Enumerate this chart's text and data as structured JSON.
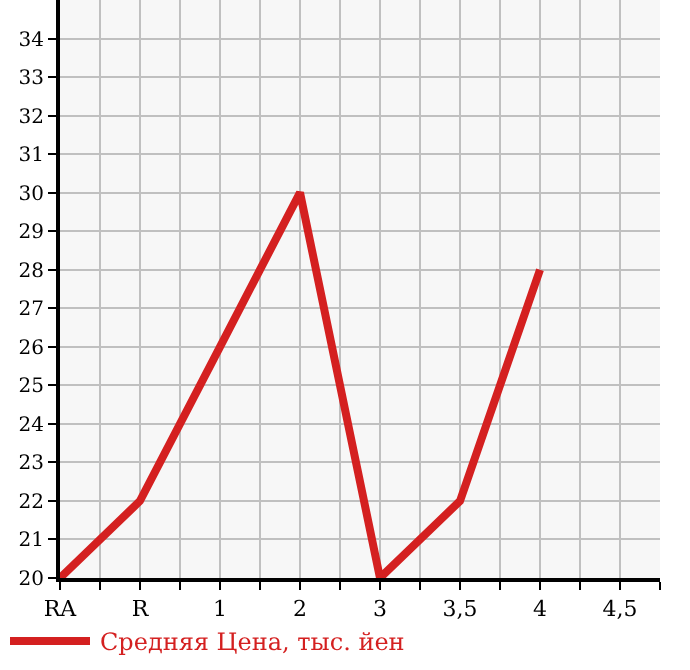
{
  "chart_data": {
    "type": "line",
    "categories": [
      "RA",
      "R",
      "1",
      "2",
      "3",
      "3,5",
      "4",
      "4,5"
    ],
    "series": [
      {
        "name": "Средняя Цена, тыс. йен",
        "color": "#d42020",
        "values": [
          20,
          22,
          26,
          30,
          20,
          22,
          28,
          null
        ]
      }
    ],
    "ylim": [
      20,
      35
    ],
    "yticks": [
      20,
      21,
      22,
      23,
      24,
      25,
      26,
      27,
      28,
      29,
      30,
      31,
      32,
      33,
      34
    ],
    "grid": true,
    "legend": "bottom",
    "marker": "none",
    "line_style": "solid"
  }
}
